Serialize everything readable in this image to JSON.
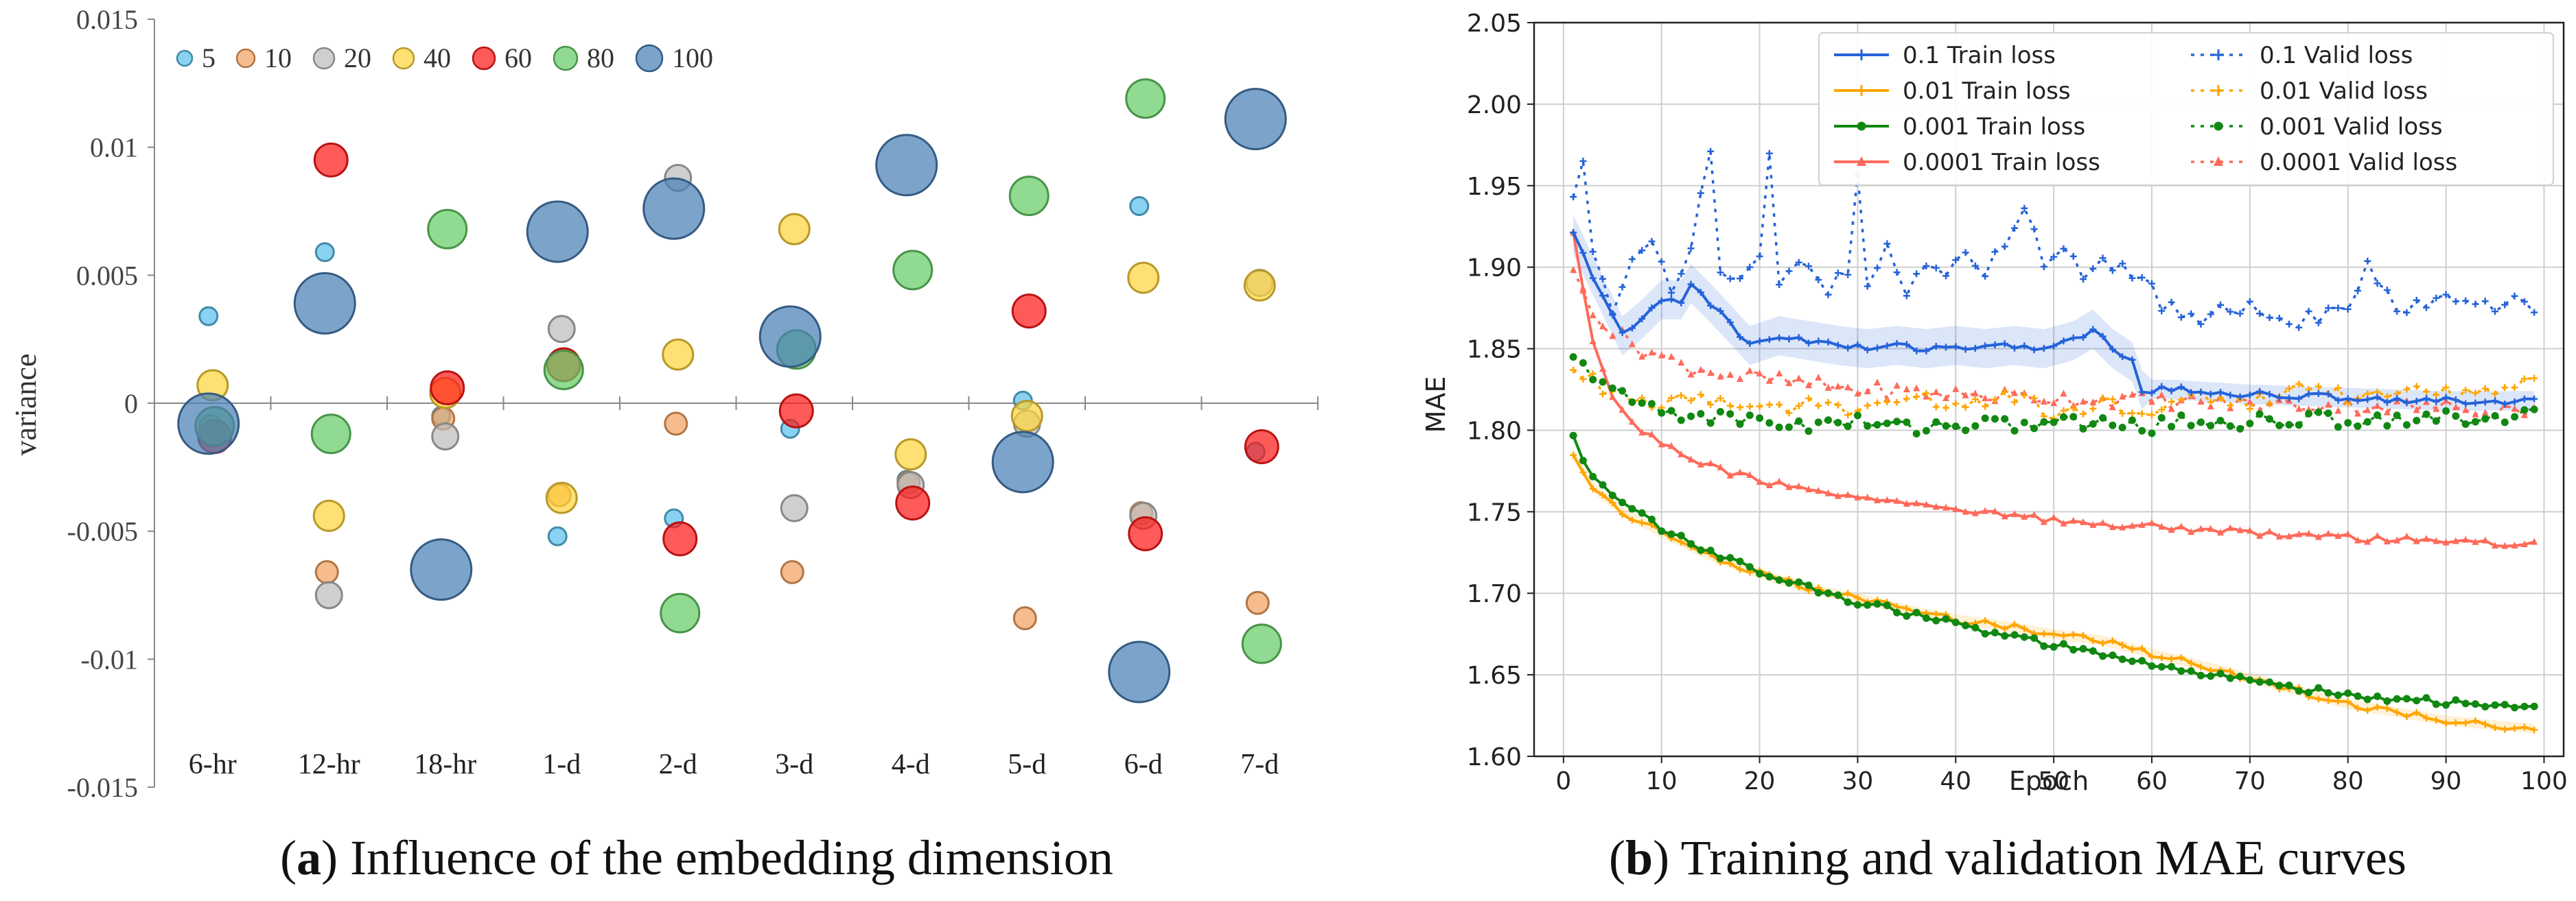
{
  "chart_data": [
    {
      "type": "scatter",
      "panel_label": "a",
      "caption": "Influence of the embedding dimension",
      "ylabel": "variance",
      "ylim": [
        -0.015,
        0.015
      ],
      "yticks": [
        "0.015",
        "0.01",
        "0.005",
        "0",
        "-0.005",
        "-0.01",
        "-0.015"
      ],
      "yticks_values": [
        0.015,
        0.01,
        0.005,
        0,
        -0.005,
        -0.01,
        -0.015
      ],
      "categories": [
        "6-hr",
        "12-hr",
        "18-hr",
        "1-d",
        "2-d",
        "3-d",
        "4-d",
        "5-d",
        "6-d",
        "7-d"
      ],
      "series": [
        {
          "name": "5",
          "color": "#5BC0EB",
          "values": [
            0.0034,
            0.0059,
            -0.0005,
            -0.0052,
            -0.0045,
            -0.001,
            -0.003,
            0.0001,
            0.0077,
            -0.0019
          ]
        },
        {
          "name": "10",
          "color": "#F4A261",
          "values": [
            -0.0009,
            -0.0066,
            -0.0006,
            -0.0036,
            -0.0008,
            -0.0066,
            -0.0031,
            -0.0084,
            -0.0043,
            -0.0078
          ]
        },
        {
          "name": "20",
          "color": "#BDBDBD",
          "values": [
            -0.0012,
            -0.0075,
            -0.0013,
            0.0029,
            0.0088,
            -0.0041,
            -0.0032,
            -0.0008,
            -0.0044,
            0.0047
          ]
        },
        {
          "name": "40",
          "color": "#FFD43B",
          "values": [
            0.0007,
            -0.0044,
            0.0004,
            -0.0037,
            0.0019,
            0.0068,
            -0.002,
            -0.0005,
            0.0049,
            0.0046
          ]
        },
        {
          "name": "60",
          "color": "#FF1A1A",
          "values": [
            -0.0013,
            0.0095,
            0.0006,
            0.0015,
            -0.0053,
            -0.0003,
            -0.0039,
            0.0036,
            -0.0051,
            -0.0017
          ]
        },
        {
          "name": "80",
          "color": "#66CC66",
          "values": [
            -0.0009,
            -0.0012,
            0.0068,
            0.0013,
            -0.0082,
            0.0021,
            0.0052,
            0.0081,
            0.0119,
            -0.0094
          ]
        },
        {
          "name": "100",
          "color": "#4A7FB5",
          "values": [
            -0.0008,
            0.0039,
            -0.0065,
            0.0067,
            0.0076,
            0.0026,
            0.0093,
            -0.0023,
            -0.0105,
            0.0111
          ]
        }
      ]
    },
    {
      "type": "line",
      "panel_label": "b",
      "caption": "Training and validation MAE curves",
      "xlabel": "Epoch",
      "ylabel": "MAE",
      "xlim": [
        -3,
        102
      ],
      "ylim": [
        1.6,
        2.05
      ],
      "xticks": [
        0,
        10,
        20,
        30,
        40,
        50,
        60,
        70,
        80,
        90,
        100
      ],
      "yticks": [
        "1.60",
        "1.65",
        "1.70",
        "1.75",
        "1.80",
        "1.85",
        "1.90",
        "1.95",
        "2.00",
        "2.05"
      ],
      "yticks_values": [
        1.6,
        1.65,
        1.7,
        1.75,
        1.8,
        1.85,
        1.9,
        1.95,
        2.0,
        2.05
      ],
      "grid": true,
      "legend": "top-right",
      "series": [
        {
          "name": "0.1 Train loss",
          "color": "#2563D9",
          "style": "solid",
          "marker": "plus",
          "keypoints": [
            [
              1,
              1.92
            ],
            [
              3,
              1.895
            ],
            [
              6,
              1.858
            ],
            [
              8,
              1.868
            ],
            [
              10,
              1.88
            ],
            [
              12,
              1.88
            ],
            [
              13,
              1.89
            ],
            [
              15,
              1.878
            ],
            [
              17,
              1.865
            ],
            [
              19,
              1.852
            ],
            [
              22,
              1.858
            ],
            [
              25,
              1.855
            ],
            [
              28,
              1.852
            ],
            [
              31,
              1.85
            ],
            [
              34,
              1.852
            ],
            [
              37,
              1.85
            ],
            [
              40,
              1.852
            ],
            [
              43,
              1.85
            ],
            [
              46,
              1.852
            ],
            [
              49,
              1.85
            ],
            [
              52,
              1.855
            ],
            [
              54,
              1.862
            ],
            [
              56,
              1.85
            ],
            [
              58,
              1.842
            ],
            [
              59,
              1.825
            ],
            [
              62,
              1.825
            ],
            [
              70,
              1.822
            ],
            [
              80,
              1.82
            ],
            [
              90,
              1.818
            ],
            [
              99,
              1.818
            ]
          ]
        },
        {
          "name": "0.01 Train loss",
          "color": "#FFA500",
          "style": "solid",
          "marker": "plus",
          "keypoints": [
            [
              1,
              1.785
            ],
            [
              3,
              1.765
            ],
            [
              6,
              1.75
            ],
            [
              10,
              1.737
            ],
            [
              15,
              1.723
            ],
            [
              20,
              1.712
            ],
            [
              25,
              1.703
            ],
            [
              30,
              1.697
            ],
            [
              35,
              1.69
            ],
            [
              40,
              1.684
            ],
            [
              45,
              1.68
            ],
            [
              50,
              1.675
            ],
            [
              55,
              1.671
            ],
            [
              60,
              1.663
            ],
            [
              65,
              1.656
            ],
            [
              70,
              1.648
            ],
            [
              75,
              1.64
            ],
            [
              80,
              1.632
            ],
            [
              85,
              1.627
            ],
            [
              90,
              1.622
            ],
            [
              95,
              1.619
            ],
            [
              99,
              1.617
            ]
          ]
        },
        {
          "name": "0.001 Train loss",
          "color": "#118811",
          "style": "solid",
          "marker": "circle",
          "keypoints": [
            [
              1,
              1.797
            ],
            [
              3,
              1.77
            ],
            [
              6,
              1.755
            ],
            [
              10,
              1.74
            ],
            [
              15,
              1.725
            ],
            [
              20,
              1.713
            ],
            [
              25,
              1.703
            ],
            [
              30,
              1.695
            ],
            [
              35,
              1.688
            ],
            [
              40,
              1.681
            ],
            [
              45,
              1.674
            ],
            [
              50,
              1.668
            ],
            [
              55,
              1.662
            ],
            [
              60,
              1.656
            ],
            [
              65,
              1.651
            ],
            [
              70,
              1.646
            ],
            [
              75,
              1.642
            ],
            [
              80,
              1.638
            ],
            [
              85,
              1.635
            ],
            [
              90,
              1.633
            ],
            [
              95,
              1.631
            ],
            [
              99,
              1.631
            ]
          ]
        },
        {
          "name": "0.0001 Train loss",
          "color": "#FF6A5A",
          "style": "solid",
          "marker": "tri",
          "keypoints": [
            [
              1,
              1.92
            ],
            [
              3,
              1.855
            ],
            [
              5,
              1.82
            ],
            [
              8,
              1.8
            ],
            [
              12,
              1.785
            ],
            [
              18,
              1.772
            ],
            [
              25,
              1.763
            ],
            [
              30,
              1.758
            ],
            [
              40,
              1.75
            ],
            [
              50,
              1.745
            ],
            [
              60,
              1.741
            ],
            [
              70,
              1.737
            ],
            [
              80,
              1.734
            ],
            [
              90,
              1.732
            ],
            [
              99,
              1.73
            ]
          ]
        },
        {
          "name": "0.1 Valid loss",
          "color": "#2563D9",
          "style": "dotted",
          "marker": "plus",
          "keypoints": [
            [
              1,
              1.94
            ],
            [
              2,
              1.965
            ],
            [
              3,
              1.905
            ],
            [
              5,
              1.875
            ],
            [
              7,
              1.9
            ],
            [
              9,
              1.92
            ],
            [
              11,
              1.885
            ],
            [
              13,
              1.91
            ],
            [
              15,
              1.975
            ],
            [
              16,
              1.895
            ],
            [
              18,
              1.89
            ],
            [
              20,
              1.905
            ],
            [
              21,
              1.97
            ],
            [
              22,
              1.89
            ],
            [
              25,
              1.905
            ],
            [
              27,
              1.885
            ],
            [
              29,
              1.9
            ],
            [
              30,
              1.96
            ],
            [
              31,
              1.89
            ],
            [
              33,
              1.91
            ],
            [
              35,
              1.885
            ],
            [
              37,
              1.905
            ],
            [
              39,
              1.89
            ],
            [
              41,
              1.91
            ],
            [
              43,
              1.895
            ],
            [
              45,
              1.915
            ],
            [
              47,
              1.94
            ],
            [
              49,
              1.9
            ],
            [
              51,
              1.915
            ],
            [
              53,
              1.895
            ],
            [
              55,
              1.905
            ],
            [
              57,
              1.9
            ],
            [
              59,
              1.895
            ],
            [
              61,
              1.875
            ],
            [
              65,
              1.87
            ],
            [
              70,
              1.875
            ],
            [
              75,
              1.868
            ],
            [
              80,
              1.875
            ],
            [
              82,
              1.9
            ],
            [
              85,
              1.872
            ],
            [
              90,
              1.88
            ],
            [
              95,
              1.875
            ],
            [
              97,
              1.885
            ],
            [
              99,
              1.873
            ]
          ]
        },
        {
          "name": "0.01 Valid loss",
          "color": "#FFA500",
          "style": "dotted",
          "marker": "plus",
          "keypoints": [
            [
              1,
              1.84
            ],
            [
              3,
              1.83
            ],
            [
              6,
              1.82
            ],
            [
              10,
              1.815
            ],
            [
              15,
              1.82
            ],
            [
              20,
              1.81
            ],
            [
              25,
              1.818
            ],
            [
              30,
              1.812
            ],
            [
              35,
              1.82
            ],
            [
              40,
              1.815
            ],
            [
              45,
              1.822
            ],
            [
              50,
              1.81
            ],
            [
              55,
              1.815
            ],
            [
              60,
              1.812
            ],
            [
              65,
              1.82
            ],
            [
              70,
              1.818
            ],
            [
              75,
              1.825
            ],
            [
              80,
              1.82
            ],
            [
              85,
              1.827
            ],
            [
              90,
              1.822
            ],
            [
              95,
              1.825
            ],
            [
              99,
              1.832
            ]
          ]
        },
        {
          "name": "0.001 Valid loss",
          "color": "#118811",
          "style": "dotted",
          "marker": "circle",
          "keypoints": [
            [
              1,
              1.842
            ],
            [
              3,
              1.835
            ],
            [
              6,
              1.82
            ],
            [
              10,
              1.812
            ],
            [
              15,
              1.808
            ],
            [
              20,
              1.806
            ],
            [
              25,
              1.803
            ],
            [
              30,
              1.805
            ],
            [
              35,
              1.802
            ],
            [
              40,
              1.804
            ],
            [
              45,
              1.803
            ],
            [
              50,
              1.805
            ],
            [
              55,
              1.804
            ],
            [
              60,
              1.803
            ],
            [
              65,
              1.806
            ],
            [
              70,
              1.805
            ],
            [
              75,
              1.807
            ],
            [
              80,
              1.806
            ],
            [
              85,
              1.808
            ],
            [
              90,
              1.807
            ],
            [
              95,
              1.809
            ],
            [
              99,
              1.81
            ]
          ]
        },
        {
          "name": "0.0001 Valid loss",
          "color": "#FF6A5A",
          "style": "dotted",
          "marker": "tri",
          "keypoints": [
            [
              1,
              1.895
            ],
            [
              3,
              1.875
            ],
            [
              5,
              1.86
            ],
            [
              8,
              1.85
            ],
            [
              12,
              1.84
            ],
            [
              18,
              1.833
            ],
            [
              25,
              1.828
            ],
            [
              30,
              1.825
            ],
            [
              40,
              1.822
            ],
            [
              50,
              1.82
            ],
            [
              60,
              1.818
            ],
            [
              70,
              1.816
            ],
            [
              80,
              1.815
            ],
            [
              90,
              1.814
            ],
            [
              99,
              1.813
            ]
          ]
        }
      ]
    }
  ]
}
